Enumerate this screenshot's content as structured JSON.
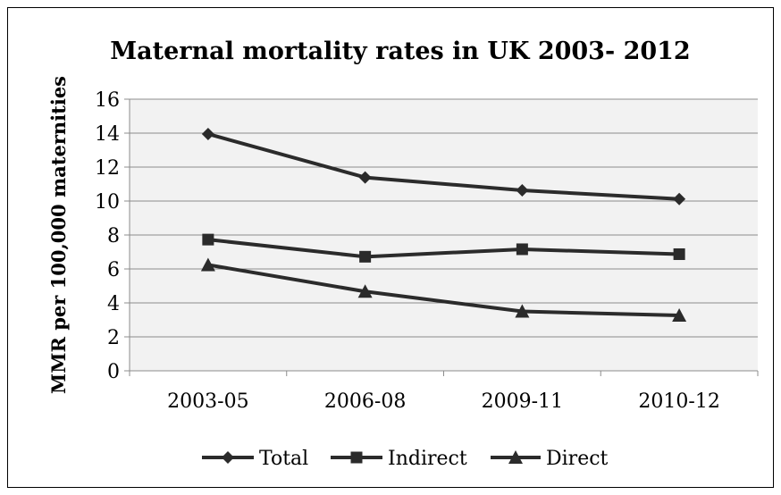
{
  "chart_data": {
    "type": "line",
    "title": "Maternal mortality rates in UK 2003- 2012",
    "xlabel": "",
    "ylabel": "MMR per 100,000 maternities",
    "categories": [
      "2003-05",
      "2006-08",
      "2009-11",
      "2010-12"
    ],
    "ylim": [
      0,
      16
    ],
    "yticks": [
      "0",
      "2",
      "4",
      "6",
      "8",
      "10",
      "12",
      "14",
      "16"
    ],
    "grid": true,
    "legend_position": "bottom",
    "series": [
      {
        "name": "Total",
        "marker": "diamond",
        "values": [
          13.95,
          11.39,
          10.63,
          10.12
        ]
      },
      {
        "name": "Indirect",
        "marker": "square",
        "values": [
          7.73,
          6.72,
          7.16,
          6.87
        ]
      },
      {
        "name": "Direct",
        "marker": "triangle",
        "values": [
          6.24,
          4.67,
          3.5,
          3.26
        ]
      }
    ],
    "colors": {
      "line": "#2b2b2b",
      "grid": "#8c8c8c",
      "plot_bg": "#f2f2f2"
    }
  }
}
